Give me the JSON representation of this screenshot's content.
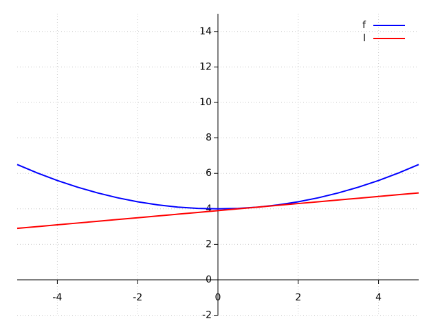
{
  "chart_data": {
    "type": "line",
    "x": [
      -5,
      -4.5,
      -4,
      -3.5,
      -3,
      -2.5,
      -2,
      -1.5,
      -1,
      -0.5,
      0,
      0.5,
      1,
      1.5,
      2,
      2.5,
      3,
      3.5,
      4,
      4.5,
      5
    ],
    "series": [
      {
        "name": "f",
        "color": "#0000ff",
        "values": [
          6.5,
          6.025,
          5.6,
          5.225,
          4.9,
          4.625,
          4.4,
          4.225,
          4.1,
          4.025,
          4,
          4.025,
          4.1,
          4.225,
          4.4,
          4.625,
          4.9,
          5.225,
          5.6,
          6.025,
          6.5
        ]
      },
      {
        "name": "l",
        "color": "#ff0000",
        "values": [
          2.9,
          3.0,
          3.1,
          3.2,
          3.3,
          3.4,
          3.5,
          3.6,
          3.7,
          3.8,
          3.9,
          4.0,
          4.1,
          4.2,
          4.3,
          4.4,
          4.5,
          4.6,
          4.7,
          4.8,
          4.9
        ]
      }
    ],
    "xlim": [
      -5,
      5
    ],
    "ylim": [
      -2,
      15
    ],
    "xticks": [
      -4,
      -2,
      0,
      2,
      4
    ],
    "yticks": [
      -2,
      0,
      2,
      4,
      6,
      8,
      10,
      12,
      14
    ],
    "grid": true,
    "legend": "top-right"
  }
}
